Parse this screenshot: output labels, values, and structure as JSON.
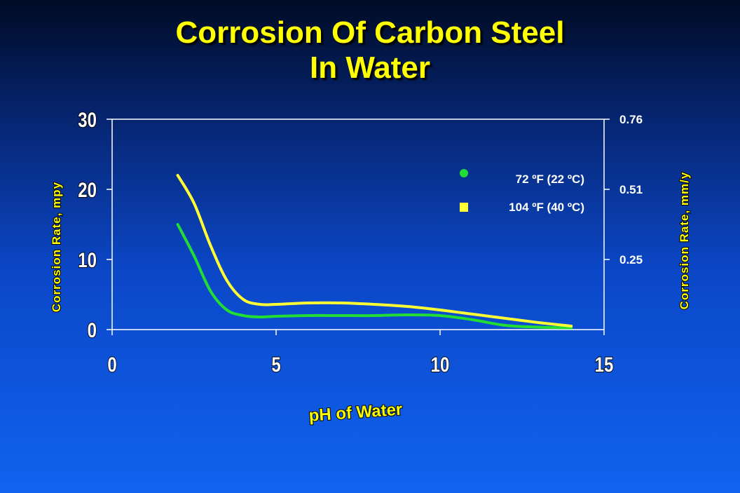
{
  "chart_data": {
    "type": "line",
    "title_line1": "Corrosion Of Carbon Steel",
    "title_line2": "In Water",
    "xlabel": "pH of Water",
    "ylabel": "Corrosion Rate, mpy",
    "ylabel_right": "Corrosion Rate, mm/y",
    "xlim": [
      0,
      15
    ],
    "ylim": [
      0,
      30
    ],
    "x_ticks": [
      "0",
      "5",
      "10",
      "15"
    ],
    "y_ticks": [
      "0",
      "10",
      "20",
      "30"
    ],
    "y_right_ticks": [
      {
        "label": "0.25",
        "value": 10
      },
      {
        "label": "0.51",
        "value": 20
      },
      {
        "label": "0.76",
        "value": 30
      }
    ],
    "legend_position": "top-right",
    "series": [
      {
        "name": "72 ºF (22 ºC)",
        "color": "#22dd33",
        "marker": "circle",
        "points": [
          [
            2.0,
            15.0
          ],
          [
            2.5,
            10.5
          ],
          [
            3.0,
            5.5
          ],
          [
            3.5,
            2.8
          ],
          [
            4.0,
            2.0
          ],
          [
            4.5,
            1.8
          ],
          [
            5.0,
            1.9
          ],
          [
            6.0,
            2.0
          ],
          [
            7.0,
            2.0
          ],
          [
            8.0,
            2.0
          ],
          [
            9.0,
            2.1
          ],
          [
            10.0,
            2.0
          ],
          [
            11.0,
            1.4
          ],
          [
            12.0,
            0.6
          ],
          [
            13.0,
            0.35
          ],
          [
            14.0,
            0.25
          ]
        ]
      },
      {
        "name": "104 ºF (40 ºC)",
        "color": "#ffff33",
        "marker": "square",
        "points": [
          [
            2.0,
            22.0
          ],
          [
            2.5,
            18.0
          ],
          [
            3.0,
            12.0
          ],
          [
            3.5,
            7.0
          ],
          [
            4.0,
            4.3
          ],
          [
            4.5,
            3.6
          ],
          [
            5.0,
            3.6
          ],
          [
            6.0,
            3.8
          ],
          [
            7.0,
            3.8
          ],
          [
            8.0,
            3.6
          ],
          [
            9.0,
            3.3
          ],
          [
            10.0,
            2.8
          ],
          [
            11.0,
            2.2
          ],
          [
            12.0,
            1.6
          ],
          [
            13.0,
            1.0
          ],
          [
            14.0,
            0.5
          ]
        ]
      }
    ]
  }
}
